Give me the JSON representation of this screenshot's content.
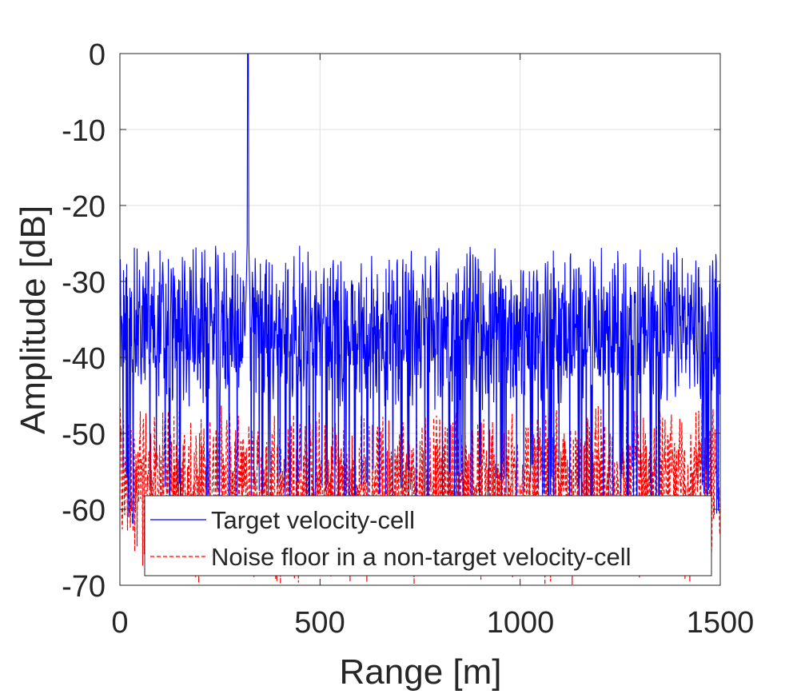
{
  "chart_data": {
    "type": "line",
    "title": "",
    "xlabel": "Range [m]",
    "ylabel": "Amplitude [dB]",
    "xlim": [
      0,
      1500
    ],
    "ylim": [
      -70,
      0
    ],
    "xticks": [
      0,
      500,
      1000,
      1500
    ],
    "yticks": [
      0,
      -10,
      -20,
      -30,
      -40,
      -50,
      -60,
      -70
    ],
    "xtick_labels": [
      "0",
      "500",
      "1000",
      "1500"
    ],
    "ytick_labels": [
      "0",
      "-10",
      "-20",
      "-30",
      "-40",
      "-50",
      "-60",
      "-70"
    ],
    "grid": true,
    "legend_position": "bottom-right",
    "series": [
      {
        "name": "Target velocity-cell",
        "color": "#0000ff",
        "style": "solid",
        "peak": {
          "x": 320,
          "y": 0
        },
        "floor_mean_db": -36,
        "floor_range_db": [
          -62,
          -25.3
        ],
        "sample_points": [
          {
            "x": 0,
            "y": -34
          },
          {
            "x": 100,
            "y": -35
          },
          {
            "x": 150,
            "y": -27
          },
          {
            "x": 320,
            "y": 0
          },
          {
            "x": 400,
            "y": -26
          },
          {
            "x": 600,
            "y": -36
          },
          {
            "x": 800,
            "y": -30
          },
          {
            "x": 915,
            "y": -25.3
          },
          {
            "x": 1100,
            "y": -35
          },
          {
            "x": 1300,
            "y": -28
          },
          {
            "x": 1500,
            "y": -42
          }
        ]
      },
      {
        "name": "Noise floor in a non-target velocity-cell",
        "color": "#ff0000",
        "style": "dashed",
        "floor_mean_db": -56,
        "floor_range_db": [
          -70,
          -44
        ],
        "sample_points": [
          {
            "x": 0,
            "y": -48
          },
          {
            "x": 100,
            "y": -56
          },
          {
            "x": 300,
            "y": -55
          },
          {
            "x": 500,
            "y": -57
          },
          {
            "x": 700,
            "y": -52
          },
          {
            "x": 900,
            "y": -56
          },
          {
            "x": 1100,
            "y": -55
          },
          {
            "x": 1300,
            "y": -57
          },
          {
            "x": 1500,
            "y": -45
          }
        ]
      }
    ]
  },
  "colors": {
    "axis": "#262626",
    "grid": "#e0e0e0",
    "target": "#0000ff",
    "noise": "#ff0000"
  }
}
